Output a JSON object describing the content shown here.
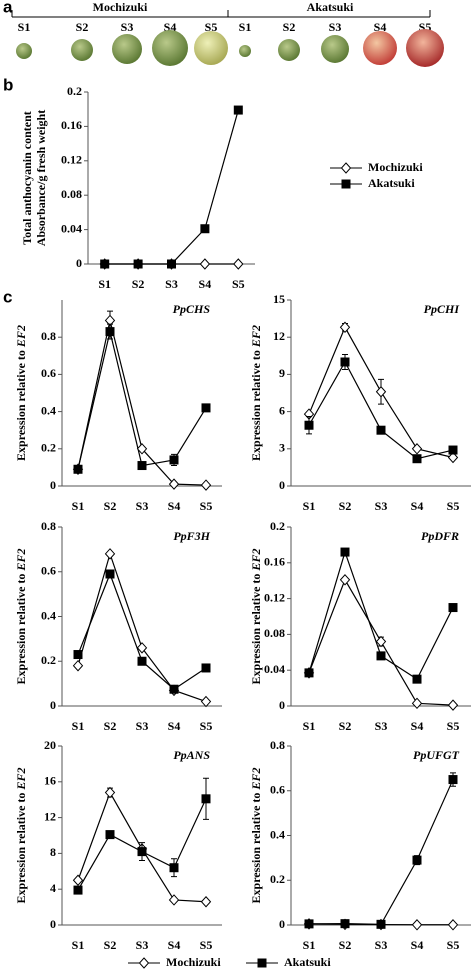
{
  "panel_labels": [
    "a",
    "b",
    "c"
  ],
  "photo": {
    "groups": [
      {
        "name": "Mochizuki",
        "stages": [
          "S1",
          "S2",
          "S3",
          "S4",
          "S5"
        ]
      },
      {
        "name": "Akatsuki",
        "stages": [
          "S1",
          "S2",
          "S3",
          "S4",
          "S5"
        ]
      }
    ]
  },
  "chart_data": [
    {
      "type": "line",
      "y_label": [
        "Total anthocyanin content",
        "Absorbance/g fresh weight"
      ],
      "categories": [
        "S1",
        "S2",
        "S3",
        "S4",
        "S5"
      ],
      "series": [
        {
          "name": "Mochizuki",
          "color": "#000000",
          "marker": "diamond",
          "marker_fill": "#ffffff",
          "values": [
            0,
            0,
            0,
            0,
            0
          ]
        },
        {
          "name": "Akatsuki",
          "color": "#000000",
          "marker": "square",
          "marker_fill": "#000000",
          "values": [
            0,
            0,
            0,
            0.041,
            0.179
          ]
        }
      ],
      "ylim": [
        0,
        0.2
      ],
      "yticks": [
        0,
        0.04,
        0.08,
        0.12,
        0.16,
        0.2
      ],
      "legend": "right",
      "grid": false
    },
    {
      "type": "line",
      "title": "PpCHS",
      "y_label": {
        "text": "Expression relative to",
        "italic": "EF2"
      },
      "categories": [
        "S1",
        "S2",
        "S3",
        "S4",
        "S5"
      ],
      "series": [
        {
          "name": "Mochizuki",
          "color": "#000000",
          "marker": "diamond",
          "marker_fill": "#ffffff",
          "values": [
            0.09,
            0.89,
            0.2,
            0.01,
            0.005
          ],
          "errors": [
            null,
            0.05,
            null,
            null,
            null
          ]
        },
        {
          "name": "Akatsuki",
          "color": "#000000",
          "marker": "square",
          "marker_fill": "#000000",
          "values": [
            0.09,
            0.83,
            0.11,
            0.14,
            0.42
          ],
          "errors": [
            null,
            0.04,
            null,
            0.03,
            null
          ]
        }
      ],
      "ylim": [
        0,
        1
      ],
      "yticks": [
        0,
        0.2,
        0.4,
        0.6,
        0.8
      ],
      "grid": false
    },
    {
      "type": "line",
      "title": "PpCHI",
      "y_label": {
        "text": "Expression relative to",
        "italic": "EF2"
      },
      "categories": [
        "S1",
        "S2",
        "S3",
        "S4",
        "S5"
      ],
      "series": [
        {
          "name": "Mochizuki",
          "color": "#000000",
          "marker": "diamond",
          "marker_fill": "#ffffff",
          "values": [
            5.8,
            12.8,
            7.6,
            3.0,
            2.3
          ],
          "errors": [
            null,
            0.3,
            1.0,
            null,
            null
          ]
        },
        {
          "name": "Akatsuki",
          "color": "#000000",
          "marker": "square",
          "marker_fill": "#000000",
          "values": [
            4.9,
            10,
            4.5,
            2.2,
            2.9
          ],
          "errors": [
            0.7,
            0.6,
            null,
            null,
            null
          ]
        }
      ],
      "ylim": [
        0,
        15
      ],
      "yticks": [
        0,
        3,
        6,
        9,
        12,
        15
      ],
      "grid": false
    },
    {
      "type": "line",
      "title": "PpF3H",
      "y_label": {
        "text": "Expression relative to",
        "italic": "EF2"
      },
      "categories": [
        "S1",
        "S2",
        "S3",
        "S4",
        "S5"
      ],
      "series": [
        {
          "name": "Mochizuki",
          "color": "#000000",
          "marker": "diamond",
          "marker_fill": "#ffffff",
          "values": [
            0.18,
            0.68,
            0.26,
            0.07,
            0.02
          ],
          "errors": [
            null,
            null,
            null,
            null,
            null
          ]
        },
        {
          "name": "Akatsuki",
          "color": "#000000",
          "marker": "square",
          "marker_fill": "#000000",
          "values": [
            0.23,
            0.59,
            0.2,
            0.075,
            0.17
          ],
          "errors": [
            null,
            null,
            null,
            null,
            null
          ]
        }
      ],
      "ylim": [
        0,
        0.8
      ],
      "yticks": [
        0,
        0.2,
        0.4,
        0.6,
        0.8
      ],
      "grid": false
    },
    {
      "type": "line",
      "title": "PpDFR",
      "y_label": {
        "text": "Expression relative to",
        "italic": "EF2"
      },
      "categories": [
        "S1",
        "S2",
        "S3",
        "S4",
        "S5"
      ],
      "series": [
        {
          "name": "Mochizuki",
          "color": "#000000",
          "marker": "diamond",
          "marker_fill": "#ffffff",
          "values": [
            0.037,
            0.141,
            0.072,
            0.003,
            0.001
          ],
          "errors": [
            null,
            null,
            0.005,
            null,
            null
          ]
        },
        {
          "name": "Akatsuki",
          "color": "#000000",
          "marker": "square",
          "marker_fill": "#000000",
          "values": [
            0.037,
            0.172,
            0.056,
            0.03,
            0.11
          ],
          "errors": [
            null,
            null,
            null,
            null,
            0.004
          ]
        }
      ],
      "ylim": [
        0,
        0.2
      ],
      "yticks": [
        0,
        0.04,
        0.08,
        0.12,
        0.16,
        0.2
      ],
      "grid": false
    },
    {
      "type": "line",
      "title": "PpANS",
      "y_label": {
        "text": "Expression relative to",
        "italic": "EF2"
      },
      "categories": [
        "S1",
        "S2",
        "S3",
        "S4",
        "S5"
      ],
      "series": [
        {
          "name": "Mochizuki",
          "color": "#000000",
          "marker": "diamond",
          "marker_fill": "#ffffff",
          "values": [
            5.0,
            14.8,
            8.5,
            2.8,
            2.6
          ],
          "errors": [
            null,
            0.5,
            null,
            null,
            null
          ]
        },
        {
          "name": "Akatsuki",
          "color": "#000000",
          "marker": "square",
          "marker_fill": "#000000",
          "values": [
            3.9,
            10.1,
            8.2,
            6.4,
            14.1
          ],
          "errors": [
            null,
            null,
            1.0,
            1.0,
            2.3
          ]
        }
      ],
      "ylim": [
        0,
        20
      ],
      "yticks": [
        0,
        4,
        8,
        12,
        16,
        20
      ],
      "grid": false
    },
    {
      "type": "line",
      "title": "PpUFGT",
      "y_label": {
        "text": "Expression relative to",
        "italic": "EF2"
      },
      "categories": [
        "S1",
        "S2",
        "S3",
        "S4",
        "S5"
      ],
      "series": [
        {
          "name": "Mochizuki",
          "color": "#000000",
          "marker": "diamond",
          "marker_fill": "#ffffff",
          "values": [
            0.005,
            0.003,
            0.002,
            0.001,
            0.001
          ],
          "errors": [
            null,
            null,
            null,
            null,
            null
          ]
        },
        {
          "name": "Akatsuki",
          "color": "#000000",
          "marker": "square",
          "marker_fill": "#000000",
          "values": [
            0.005,
            0.006,
            0.003,
            0.29,
            0.65
          ],
          "errors": [
            null,
            null,
            null,
            0.02,
            0.03
          ]
        }
      ],
      "ylim": [
        0,
        0.8
      ],
      "yticks": [
        0,
        0.2,
        0.4,
        0.6,
        0.8
      ],
      "legend": "below",
      "grid": false
    }
  ]
}
